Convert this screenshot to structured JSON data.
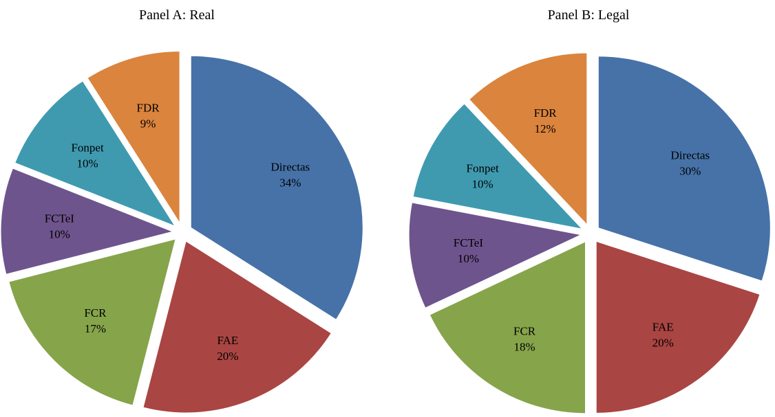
{
  "chart_data": [
    {
      "type": "pie",
      "title": "Panel A: Real",
      "categories": [
        "Directas",
        "FAE",
        "FCR",
        "FCTeI",
        "Fonpet",
        "FDR"
      ],
      "values": [
        34,
        20,
        17,
        10,
        10,
        9
      ],
      "value_labels": [
        "34%",
        "20%",
        "17%",
        "10%",
        "10%",
        "9%"
      ],
      "colors": [
        "#4672a8",
        "#a94543",
        "#86a44a",
        "#6e548d",
        "#3f9ab0",
        "#db843d"
      ]
    },
    {
      "type": "pie",
      "title": "Panel B: Legal",
      "categories": [
        "Directas",
        "FAE",
        "FCR",
        "FCTeI",
        "Fonpet",
        "FDR"
      ],
      "values": [
        30,
        20,
        18,
        10,
        10,
        12
      ],
      "value_labels": [
        "30%",
        "20%",
        "18%",
        "10%",
        "10%",
        "12%"
      ],
      "colors": [
        "#4672a8",
        "#a94543",
        "#86a44a",
        "#6e548d",
        "#3f9ab0",
        "#db843d"
      ]
    }
  ]
}
